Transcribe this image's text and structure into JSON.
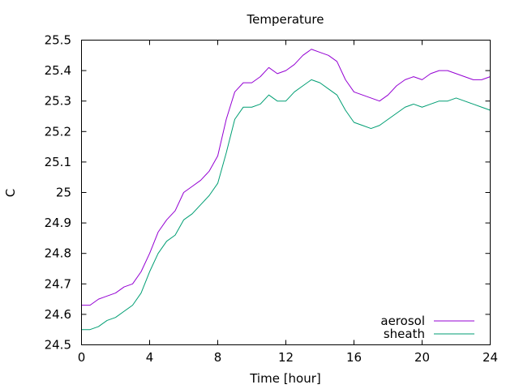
{
  "chart_data": {
    "type": "line",
    "title": "Temperature",
    "xlabel": "Time [hour]",
    "ylabel": "C",
    "xlim": [
      0,
      24
    ],
    "ylim": [
      24.5,
      25.5
    ],
    "xticks": [
      "0",
      "4",
      "8",
      "12",
      "16",
      "20",
      "24"
    ],
    "yticks": [
      "24.5",
      "24.6",
      "24.7",
      "24.8",
      "24.9",
      "25",
      "25.1",
      "25.2",
      "25.3",
      "25.4",
      "25.5"
    ],
    "grid": false,
    "legend_position": "bottom-right",
    "series": [
      {
        "name": "aerosol",
        "color": "#9400d3",
        "x": [
          0,
          0.5,
          1,
          1.5,
          2,
          2.5,
          3,
          3.5,
          4,
          4.5,
          5,
          5.5,
          6,
          6.5,
          7,
          7.5,
          8,
          8.5,
          9,
          9.5,
          10,
          10.5,
          11,
          11.5,
          12,
          12.5,
          13,
          13.5,
          14,
          14.5,
          15,
          15.5,
          16,
          16.5,
          17,
          17.5,
          18,
          18.5,
          19,
          19.5,
          20,
          20.5,
          21,
          21.5,
          22,
          22.5,
          23,
          23.5,
          24
        ],
        "values": [
          24.63,
          24.63,
          24.65,
          24.66,
          24.67,
          24.69,
          24.7,
          24.74,
          24.8,
          24.87,
          24.91,
          24.94,
          25.0,
          25.02,
          25.04,
          25.07,
          25.12,
          25.24,
          25.33,
          25.36,
          25.36,
          25.38,
          25.41,
          25.39,
          25.4,
          25.42,
          25.45,
          25.47,
          25.46,
          25.45,
          25.43,
          25.37,
          25.33,
          25.32,
          25.31,
          25.3,
          25.32,
          25.35,
          25.37,
          25.38,
          25.37,
          25.39,
          25.4,
          25.4,
          25.39,
          25.38,
          25.37,
          25.37,
          25.38
        ]
      },
      {
        "name": "sheath",
        "color": "#009e73",
        "x": [
          0,
          0.5,
          1,
          1.5,
          2,
          2.5,
          3,
          3.5,
          4,
          4.5,
          5,
          5.5,
          6,
          6.5,
          7,
          7.5,
          8,
          8.5,
          9,
          9.5,
          10,
          10.5,
          11,
          11.5,
          12,
          12.5,
          13,
          13.5,
          14,
          14.5,
          15,
          15.5,
          16,
          16.5,
          17,
          17.5,
          18,
          18.5,
          19,
          19.5,
          20,
          20.5,
          21,
          21.5,
          22,
          22.5,
          23,
          23.5,
          24
        ],
        "values": [
          24.55,
          24.55,
          24.56,
          24.58,
          24.59,
          24.61,
          24.63,
          24.67,
          24.74,
          24.8,
          24.84,
          24.86,
          24.91,
          24.93,
          24.96,
          24.99,
          25.03,
          25.13,
          25.24,
          25.28,
          25.28,
          25.29,
          25.32,
          25.3,
          25.3,
          25.33,
          25.35,
          25.37,
          25.36,
          25.34,
          25.32,
          25.27,
          25.23,
          25.22,
          25.21,
          25.22,
          25.24,
          25.26,
          25.28,
          25.29,
          25.28,
          25.29,
          25.3,
          25.3,
          25.31,
          25.3,
          25.29,
          25.28,
          25.27
        ]
      }
    ]
  }
}
